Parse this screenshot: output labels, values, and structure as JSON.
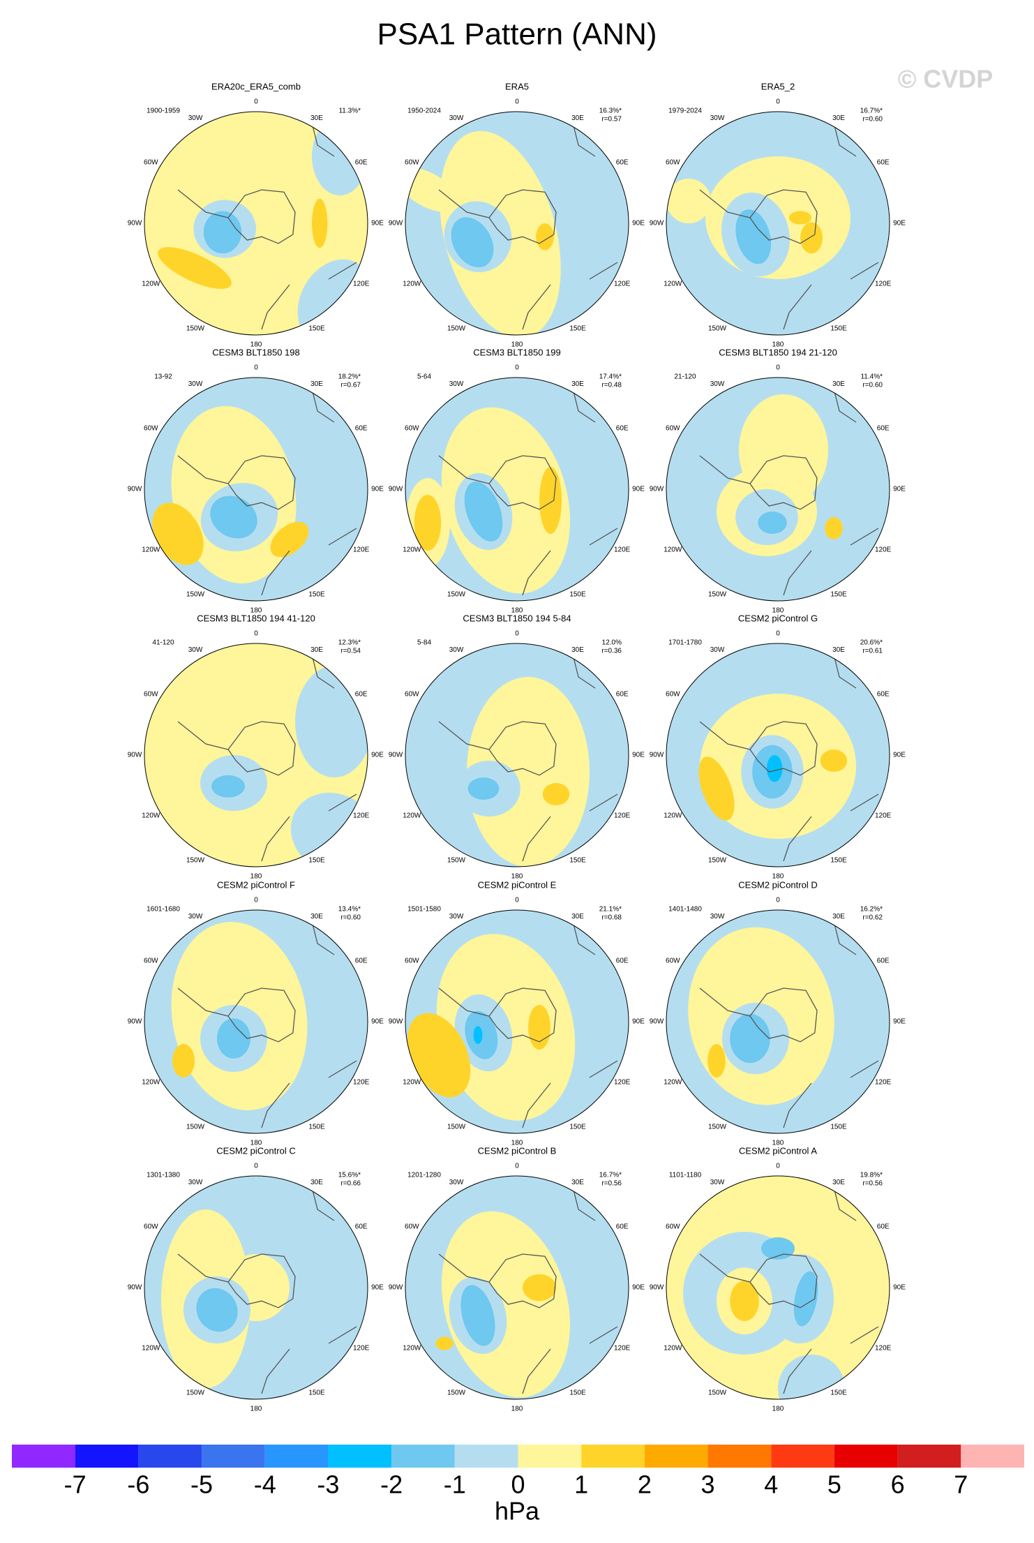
{
  "chart_data": {
    "type": "polar-maps",
    "title": "PSA1 Pattern (ANN)",
    "watermark": "© CVDP",
    "lon_labels": [
      "0",
      "30E",
      "60E",
      "90E",
      "120E",
      "150E",
      "180",
      "150W",
      "120W",
      "90W",
      "60W",
      "30W"
    ],
    "panels": [
      {
        "title": "ERA20c_ERA5_comb",
        "period": "1900-1959",
        "pct": "11.3%*"
      },
      {
        "title": "ERA5",
        "period": "1950-2024",
        "pct": "16.3%*",
        "r": "r=0.57"
      },
      {
        "title": "ERA5_2",
        "period": "1979-2024",
        "pct": "16.7%*",
        "r": "r=0.60"
      },
      {
        "title": "CESM3 BLT1850 198",
        "period": "13-92",
        "pct": "18.2%*",
        "r": "r=0.67"
      },
      {
        "title": "CESM3 BLT1850 199",
        "period": "5-64",
        "pct": "17.4%*",
        "r": "r=0.48"
      },
      {
        "title": "CESM3 BLT1850 194 21-120",
        "period": "21-120",
        "pct": "11.4%*",
        "r": "r=0.60"
      },
      {
        "title": "CESM3 BLT1850 194 41-120",
        "period": "41-120",
        "pct": "12.3%*",
        "r": "r=0.54"
      },
      {
        "title": "CESM3 BLT1850 194 5-84",
        "period": "5-84",
        "pct": "12.0%",
        "r": "r=0.36"
      },
      {
        "title": "CESM2 piControl G",
        "period": "1701-1780",
        "pct": "20.6%*",
        "r": "r=0.61"
      },
      {
        "title": "CESM2 piControl F",
        "period": "1601-1680",
        "pct": "13.4%*",
        "r": "r=0.60"
      },
      {
        "title": "CESM2 piControl E",
        "period": "1501-1580",
        "pct": "21.1%*",
        "r": "r=0.68"
      },
      {
        "title": "CESM2 piControl D",
        "period": "1401-1480",
        "pct": "16.2%*",
        "r": "r=0.62"
      },
      {
        "title": "CESM2 piControl C",
        "period": "1301-1380",
        "pct": "15.6%*",
        "r": "r=0.66"
      },
      {
        "title": "CESM2 piControl B",
        "period": "1201-1280",
        "pct": "16.7%*",
        "r": "r=0.56"
      },
      {
        "title": "CESM2 piControl A",
        "period": "1101-1180",
        "pct": "19.8%*",
        "r": "r=0.56"
      }
    ],
    "colorbar": {
      "colors": [
        "#9028ff",
        "#1414ff",
        "#2848ee",
        "#3a74ef",
        "#2896ff",
        "#00c0ff",
        "#6ec8f0",
        "#b4def0",
        "#fff59a",
        "#ffd42a",
        "#ffaa00",
        "#ff7800",
        "#ff3a12",
        "#e80000",
        "#d21e1e",
        "#ffb4b4"
      ],
      "ticks": [
        -7,
        -6,
        -5,
        -4,
        -3,
        -2,
        -1,
        0,
        1,
        2,
        3,
        4,
        5,
        6,
        7
      ],
      "units": "hPa"
    }
  }
}
